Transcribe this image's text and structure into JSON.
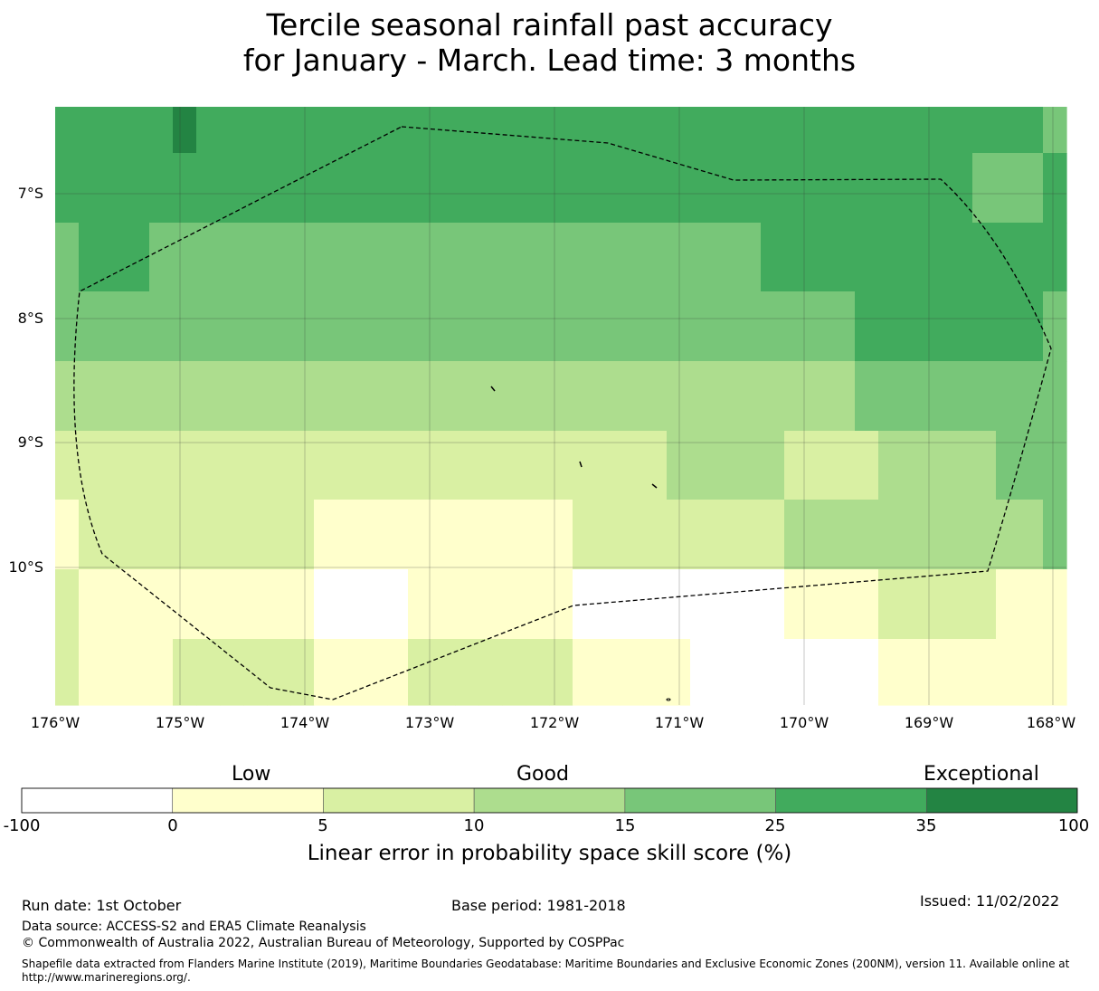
{
  "title_line1": "Tercile seasonal rainfall past accuracy",
  "title_line2": "for January - March. Lead time: 3 months",
  "lat_labels": [
    "7°S",
    "8°S",
    "9°S",
    "10°S"
  ],
  "lon_labels": [
    "176°W",
    "175°W",
    "174°W",
    "173°W",
    "172°W",
    "171°W",
    "170°W",
    "169°W",
    "168°W"
  ],
  "categories": {
    "low": "Low",
    "good": "Good",
    "exceptional": "Exceptional"
  },
  "colorbar": {
    "ticks": [
      "-100",
      "0",
      "5",
      "10",
      "15",
      "25",
      "35",
      "100"
    ],
    "colors": [
      "#ffffff",
      "#ffffcc",
      "#d9f0a3",
      "#addd8e",
      "#78c679",
      "#41ab5d",
      "#238443"
    ],
    "label": "Linear error in probability space skill score (%)"
  },
  "footer": {
    "run_date": "Run date: 1st October",
    "base_period": "Base period: 1981-2018",
    "issued": "Issued: 11/02/2022",
    "data_source": "Data source: ACCESS-S2 and ERA5 Climate Reanalysis",
    "copyright": "© Commonwealth of Australia 2022, Australian Bureau of Meteorology, Supported by COSPPac",
    "shapefile_line1": "Shapefile data extracted from Flanders Marine Institute (2019), Maritime Boundaries Geodatabase: Maritime Boundaries and Exclusive Economic Zones (200NM), version 11. Available online at",
    "shapefile_line2": "http://www.marineregions.org/."
  },
  "map_grid": {
    "note": "skill category per cell, rows north to south, 0=-100..0, 1=0..5, 2=5..10, 3=10..15, 4=15..25, 5=25..35, 6=35..100",
    "rows": [
      [
        5,
        5,
        5,
        5,
        5,
        6,
        5,
        5,
        5,
        5,
        5,
        5,
        5,
        5,
        5,
        5,
        5,
        5,
        5,
        5,
        5,
        5,
        5,
        5,
        5,
        5,
        5,
        5,
        5,
        5,
        5,
        5,
        5,
        5,
        5,
        5,
        5,
        5,
        5,
        5,
        5,
        5,
        4
      ],
      [
        5,
        5,
        5,
        5,
        5,
        5,
        5,
        5,
        5,
        5,
        5,
        5,
        5,
        5,
        5,
        5,
        5,
        5,
        5,
        5,
        5,
        5,
        5,
        5,
        5,
        5,
        5,
        5,
        5,
        5,
        5,
        5,
        5,
        5,
        5,
        5,
        5,
        5,
        5,
        4,
        4,
        4,
        5
      ],
      [
        4,
        5,
        5,
        5,
        4,
        4,
        4,
        4,
        4,
        4,
        4,
        4,
        4,
        4,
        4,
        4,
        4,
        4,
        4,
        4,
        4,
        4,
        4,
        4,
        4,
        4,
        4,
        4,
        4,
        4,
        5,
        5,
        5,
        5,
        5,
        5,
        5,
        5,
        5,
        5,
        5,
        5,
        5
      ],
      [
        4,
        4,
        4,
        4,
        4,
        4,
        4,
        4,
        4,
        4,
        4,
        4,
        4,
        4,
        4,
        4,
        4,
        4,
        4,
        4,
        4,
        4,
        4,
        4,
        4,
        4,
        4,
        4,
        4,
        4,
        4,
        4,
        4,
        4,
        5,
        5,
        5,
        5,
        5,
        5,
        5,
        5,
        4
      ],
      [
        3,
        3,
        3,
        3,
        3,
        3,
        3,
        3,
        3,
        3,
        3,
        3,
        3,
        3,
        3,
        3,
        3,
        3,
        3,
        3,
        3,
        3,
        3,
        3,
        3,
        3,
        3,
        3,
        3,
        3,
        3,
        3,
        3,
        3,
        4,
        4,
        4,
        4,
        4,
        4,
        4,
        4,
        4
      ],
      [
        2,
        2,
        2,
        2,
        2,
        2,
        2,
        2,
        2,
        2,
        2,
        2,
        2,
        2,
        2,
        2,
        2,
        2,
        2,
        2,
        2,
        2,
        2,
        2,
        2,
        2,
        3,
        3,
        3,
        3,
        3,
        2,
        2,
        2,
        2,
        3,
        3,
        3,
        3,
        3,
        4,
        4,
        4
      ],
      [
        1,
        2,
        2,
        2,
        2,
        2,
        2,
        2,
        2,
        2,
        2,
        1,
        1,
        1,
        1,
        1,
        1,
        1,
        1,
        1,
        1,
        1,
        2,
        2,
        2,
        2,
        2,
        2,
        2,
        2,
        2,
        3,
        3,
        3,
        3,
        3,
        3,
        3,
        3,
        3,
        3,
        3,
        4
      ],
      [
        2,
        1,
        1,
        1,
        1,
        1,
        1,
        1,
        1,
        1,
        1,
        0,
        0,
        0,
        0,
        1,
        1,
        1,
        1,
        1,
        1,
        1,
        0,
        0,
        0,
        0,
        0,
        0,
        0,
        0,
        0,
        1,
        1,
        1,
        1,
        2,
        2,
        2,
        2,
        2,
        1,
        1,
        1
      ],
      [
        2,
        1,
        1,
        1,
        1,
        2,
        2,
        2,
        2,
        2,
        2,
        1,
        1,
        1,
        1,
        2,
        2,
        2,
        2,
        2,
        2,
        2,
        1,
        1,
        1,
        1,
        1,
        0,
        0,
        0,
        0,
        0,
        0,
        0,
        0,
        1,
        1,
        1,
        1,
        1,
        1,
        1,
        1
      ]
    ]
  }
}
